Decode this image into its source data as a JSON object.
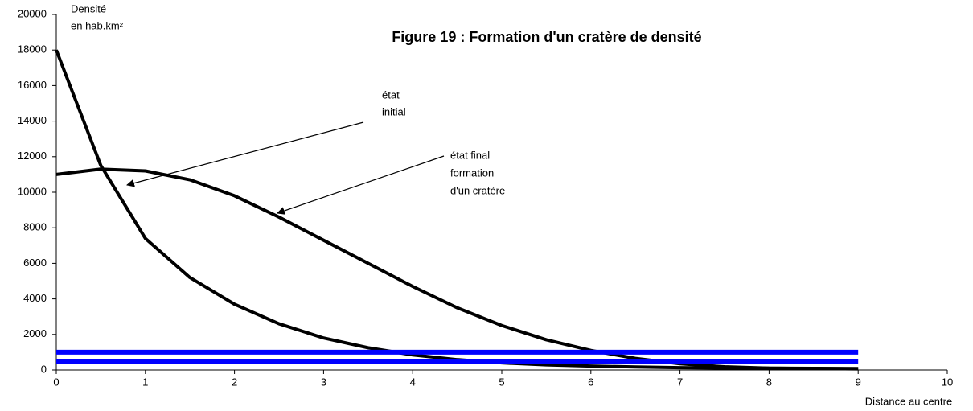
{
  "chart_data": {
    "type": "line",
    "title": "Figure 19 : Formation d'un cratère de densité",
    "y_label": [
      "Densité",
      "en hab.km²"
    ],
    "x_label": "Distance au centre",
    "annotations": [
      {
        "lines": [
          "état",
          "initial"
        ]
      },
      {
        "lines": [
          "état final",
          "formation",
          "d'un cratère"
        ]
      }
    ],
    "x": [
      0,
      0.5,
      1,
      1.5,
      2,
      2.5,
      3,
      3.5,
      4,
      4.5,
      5,
      5.5,
      6,
      6.5,
      7,
      7.5,
      8,
      8.5,
      9
    ],
    "series": [
      {
        "color": "#000000",
        "width": 4,
        "values": [
          18000,
          11500,
          7400,
          5200,
          3700,
          2600,
          1800,
          1250,
          850,
          580,
          400,
          290,
          220,
          170,
          130,
          110,
          100,
          90,
          80
        ]
      },
      {
        "color": "#000000",
        "width": 4,
        "values": [
          11000,
          11300,
          11200,
          10700,
          9800,
          8600,
          7300,
          6000,
          4700,
          3500,
          2500,
          1700,
          1100,
          650,
          350,
          180,
          100,
          80,
          60
        ]
      },
      {
        "color": "#0000ff",
        "width": 6,
        "values": [
          1000,
          1000,
          1000,
          1000,
          1000,
          1000,
          1000,
          1000,
          1000,
          1000,
          1000,
          1000,
          1000,
          1000,
          1000,
          1000,
          1000,
          1000,
          1000
        ]
      },
      {
        "color": "#0000ff",
        "width": 6,
        "values": [
          500,
          500,
          500,
          500,
          500,
          500,
          500,
          500,
          500,
          500,
          500,
          500,
          500,
          500,
          500,
          500,
          500,
          500,
          500
        ]
      }
    ],
    "xlim": [
      0,
      10
    ],
    "xticks": [
      0,
      1,
      2,
      3,
      4,
      5,
      6,
      7,
      8,
      9,
      10
    ],
    "ylim": [
      0,
      20000
    ],
    "yticks": [
      0,
      2000,
      4000,
      6000,
      8000,
      10000,
      12000,
      14000,
      16000,
      18000,
      20000
    ],
    "grid": false
  }
}
